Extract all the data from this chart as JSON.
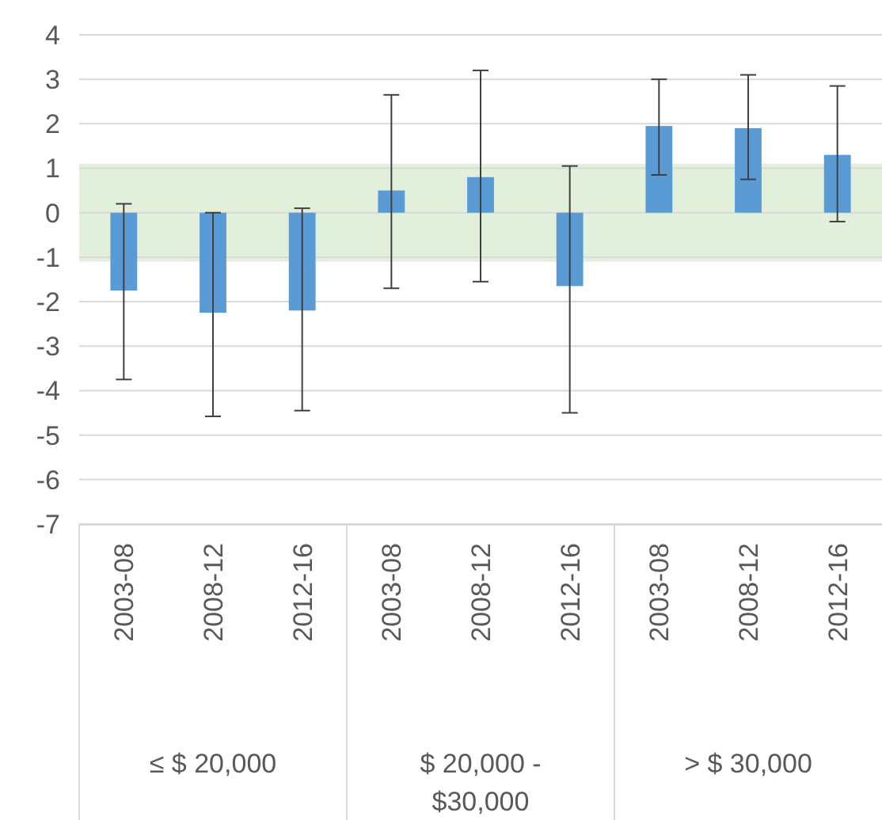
{
  "chart_data": {
    "type": "bar",
    "categories": [
      "2003-08",
      "2008-12",
      "2012-16",
      "2003-08",
      "2008-12",
      "2012-16",
      "2003-08",
      "2008-12",
      "2012-16"
    ],
    "values": [
      -1.75,
      -2.25,
      -2.2,
      0.5,
      0.8,
      -1.65,
      1.95,
      1.9,
      1.3
    ],
    "errors": [
      [
        -3.75,
        0.2
      ],
      [
        -4.58,
        0
      ],
      [
        -4.45,
        0.1
      ],
      [
        -1.7,
        2.65
      ],
      [
        -1.55,
        3.2
      ],
      [
        -4.5,
        1.05
      ],
      [
        0.85,
        3.0
      ],
      [
        0.75,
        3.1
      ],
      [
        -0.2,
        2.85
      ]
    ],
    "color": "#5b9bd5",
    "ylim": [
      -7,
      4
    ],
    "yticks": [
      -7,
      -6,
      -5,
      -4,
      -3,
      -2,
      -1,
      0,
      1,
      2,
      3,
      4
    ],
    "grid": "y",
    "bands": [
      {
        "axis": "y",
        "from": -1.1,
        "to": 1.1,
        "color": "#e2efda"
      }
    ],
    "annotations": [
      "≤ $ 20,000",
      "$ 20,000 - $30,000",
      "> $ 30,000"
    ]
  }
}
